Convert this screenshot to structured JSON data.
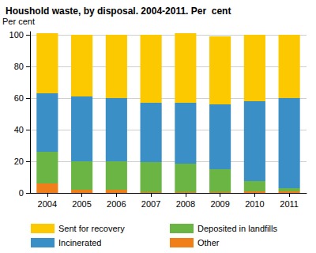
{
  "chart_data": {
    "type": "bar",
    "title": "Houshold waste, by disposal. 2004-2011. Per  cent",
    "y_label": "Per cent",
    "categories": [
      "2004",
      "2005",
      "2006",
      "2007",
      "2008",
      "2009",
      "2010",
      "2011"
    ],
    "series": [
      {
        "name": "Other",
        "color": "#f07f1a",
        "values": [
          6,
          2,
          2,
          0.5,
          0.5,
          0.5,
          1,
          1
        ]
      },
      {
        "name": "Deposited in landfills",
        "color": "#6ab544",
        "values": [
          20,
          18,
          18,
          19,
          18,
          14.5,
          6.5,
          2
        ]
      },
      {
        "name": "Incinerated",
        "color": "#3a8fc6",
        "values": [
          37,
          41,
          40,
          37.5,
          38.5,
          41,
          50.5,
          57
        ]
      },
      {
        "name": "Sent for recovery",
        "color": "#fcc800",
        "values": [
          38,
          39,
          40,
          43,
          44,
          43,
          42,
          40
        ]
      }
    ],
    "ylim": [
      0,
      102
    ],
    "yticks": [
      0,
      20,
      40,
      60,
      80,
      100
    ],
    "stacked": true,
    "grid": true,
    "legend": "bottom"
  }
}
